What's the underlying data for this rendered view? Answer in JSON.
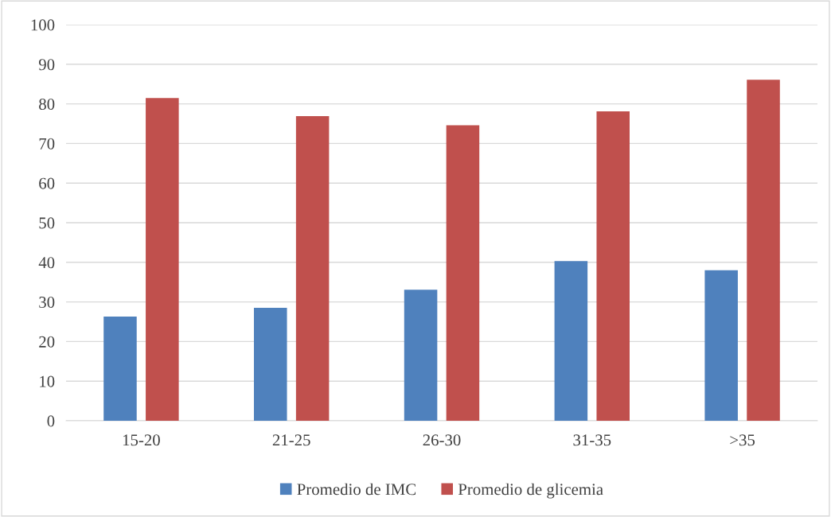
{
  "chart_data": {
    "type": "bar",
    "categories": [
      "15-20",
      "21-25",
      "26-30",
      "31-35",
      ">35"
    ],
    "series": [
      {
        "name": "Promedio de IMC",
        "color": "#4f81bd",
        "values": [
          26.3,
          28.5,
          33.1,
          40.3,
          38.0
        ]
      },
      {
        "name": "Promedio de glicemia",
        "color": "#c0504d",
        "values": [
          81.5,
          76.9,
          74.6,
          78.1,
          86.1
        ]
      }
    ],
    "ylim": [
      0,
      100
    ],
    "yticks": [
      0,
      10,
      20,
      30,
      40,
      50,
      60,
      70,
      80,
      90,
      100
    ],
    "grid": "y",
    "legend": "bottom"
  }
}
